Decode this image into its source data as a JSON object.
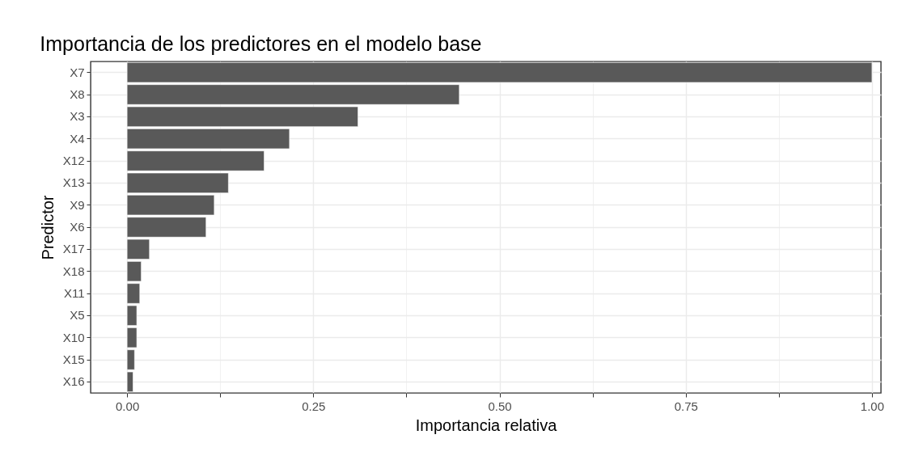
{
  "chart_data": {
    "type": "bar",
    "orientation": "horizontal",
    "title": "Importancia de los predictores en el modelo base",
    "xlabel": "Importancia relativa",
    "ylabel": "Predictor",
    "categories": [
      "X7",
      "X8",
      "X3",
      "X4",
      "X12",
      "X13",
      "X9",
      "X6",
      "X17",
      "X18",
      "X11",
      "X5",
      "X10",
      "X15",
      "X16"
    ],
    "values": [
      1.0,
      0.446,
      0.31,
      0.218,
      0.184,
      0.136,
      0.117,
      0.106,
      0.03,
      0.019,
      0.017,
      0.013,
      0.013,
      0.01,
      0.008
    ],
    "color": "#595959",
    "xlim": [
      -0.049,
      1.012
    ],
    "xticks": [
      {
        "value": 0,
        "label": "0.00"
      },
      {
        "value": 0.125,
        "label": null
      },
      0.25,
      {
        "value": 0.375,
        "label": null
      },
      {
        "value": 0.5,
        "label": "0.50"
      },
      {
        "value": 0.625,
        "label": null
      },
      0.75,
      {
        "value": 0.875,
        "label": null
      },
      {
        "value": 1,
        "label": "1.00"
      }
    ],
    "grid": true
  }
}
